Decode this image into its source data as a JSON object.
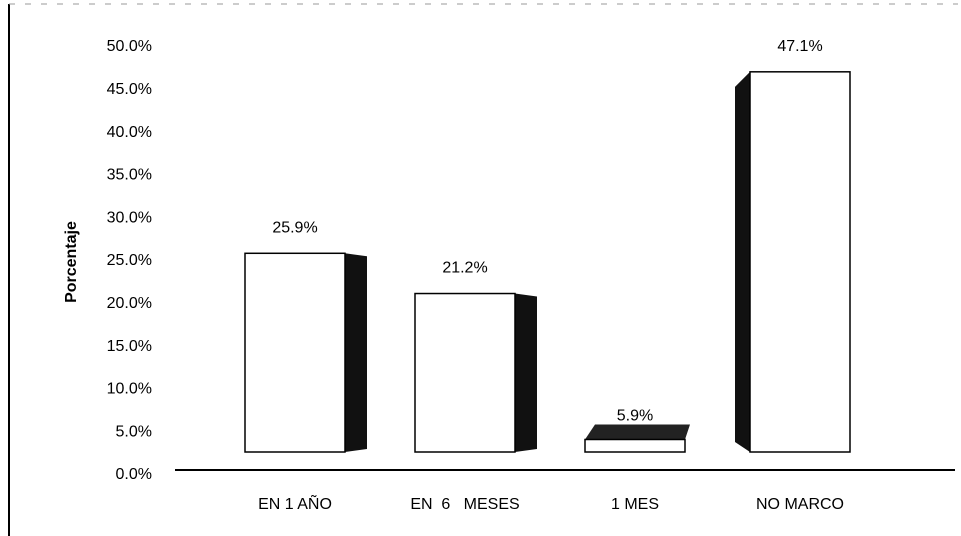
{
  "chart_data": {
    "type": "bar",
    "y_label": "Porcentaje",
    "categories": [
      "EN 1 AÑO",
      "EN  6   MESES",
      "1 MES",
      "NO MARCO"
    ],
    "values": [
      25.9,
      21.2,
      5.9,
      47.1
    ],
    "value_labels": [
      "25.9%",
      "21.2%",
      "5.9%",
      "47.1%"
    ],
    "color": "#ffffff",
    "ylim": [
      0,
      50
    ],
    "yticks": [
      {
        "value": 0,
        "label": "0.0%"
      },
      {
        "value": 5,
        "label": "5.0%"
      },
      {
        "value": 10,
        "label": "10.0%"
      },
      {
        "value": 15,
        "label": "15.0%"
      },
      {
        "value": 20,
        "label": "20.0%"
      },
      {
        "value": 25,
        "label": "25.0%"
      },
      {
        "value": 30,
        "label": "30.0%"
      },
      {
        "value": 35,
        "label": "35.0%"
      },
      {
        "value": 40,
        "label": "40.0%"
      },
      {
        "value": 45,
        "label": "45.0%"
      },
      {
        "value": 50,
        "label": "50.0%"
      }
    ]
  }
}
